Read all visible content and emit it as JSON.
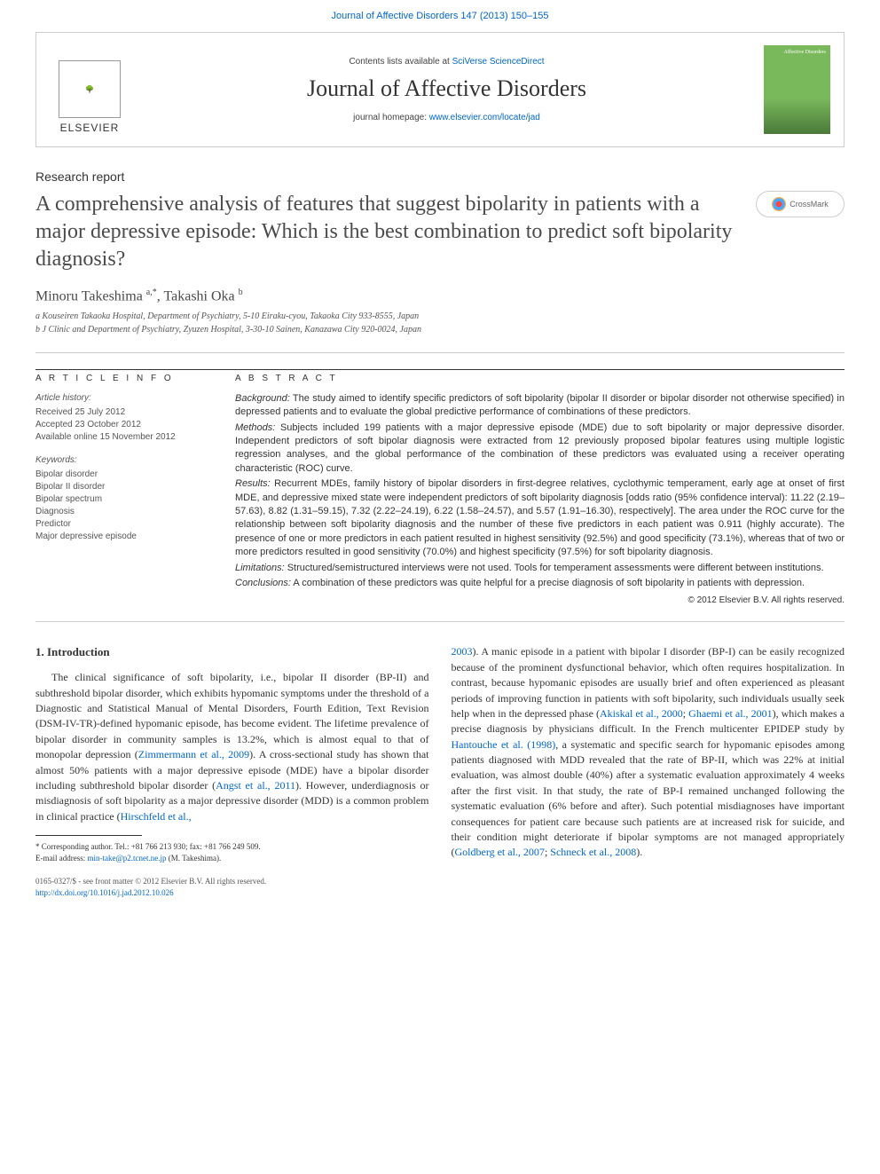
{
  "top_link": "Journal of Affective Disorders 147 (2013) 150–155",
  "header": {
    "contents_prefix": "Contents lists available at ",
    "contents_link": "SciVerse ScienceDirect",
    "journal_name": "Journal of Affective Disorders",
    "homepage_prefix": "journal homepage: ",
    "homepage_link": "www.elsevier.com/locate/jad",
    "publisher": "ELSEVIER",
    "cover_label": "Affective Disorders"
  },
  "article": {
    "type": "Research report",
    "title": "A comprehensive analysis of features that suggest bipolarity in patients with a major depressive episode: Which is the best combination to predict soft bipolarity diagnosis?",
    "crossmark": "CrossMark",
    "authors_html": "Minoru Takeshima <sup>a,*</sup>, Takashi Oka <sup>b</sup>",
    "affiliations": [
      "a Kouseiren Takaoka Hospital, Department of Psychiatry, 5-10 Eiraku-cyou, Takaoka City 933-8555, Japan",
      "b J Clinic and Department of Psychiatry, Zyuzen Hospital, 3-30-10 Sainen, Kanazawa City 920-0024, Japan"
    ]
  },
  "info": {
    "heading": "A R T I C L E   I N F O",
    "history_label": "Article history:",
    "history": [
      "Received 25 July 2012",
      "Accepted 23 October 2012",
      "Available online 15 November 2012"
    ],
    "keywords_label": "Keywords:",
    "keywords": [
      "Bipolar disorder",
      "Bipolar II disorder",
      "Bipolar spectrum",
      "Diagnosis",
      "Predictor",
      "Major depressive episode"
    ]
  },
  "abstract": {
    "heading": "A B S T R A C T",
    "background_label": "Background:",
    "background": " The study aimed to identify specific predictors of soft bipolarity (bipolar II disorder or bipolar disorder not otherwise specified) in depressed patients and to evaluate the global predictive performance of combinations of these predictors.",
    "methods_label": "Methods:",
    "methods": " Subjects included 199 patients with a major depressive episode (MDE) due to soft bipolarity or major depressive disorder. Independent predictors of soft bipolar diagnosis were extracted from 12 previously proposed bipolar features using multiple logistic regression analyses, and the global performance of the combination of these predictors was evaluated using a receiver operating characteristic (ROC) curve.",
    "results_label": "Results:",
    "results": " Recurrent MDEs, family history of bipolar disorders in first-degree relatives, cyclothymic temperament, early age at onset of first MDE, and depressive mixed state were independent predictors of soft bipolarity diagnosis [odds ratio (95% confidence interval): 11.22 (2.19–57.63), 8.82 (1.31–59.15), 7.32 (2.22–24.19), 6.22 (1.58–24.57), and 5.57 (1.91–16.30), respectively]. The area under the ROC curve for the relationship between soft bipolarity diagnosis and the number of these five predictors in each patient was 0.911 (highly accurate). The presence of one or more predictors in each patient resulted in highest sensitivity (92.5%) and good specificity (73.1%), whereas that of two or more predictors resulted in good sensitivity (70.0%) and highest specificity (97.5%) for soft bipolarity diagnosis.",
    "limitations_label": "Limitations:",
    "limitations": " Structured/semistructured interviews were not used. Tools for temperament assessments were different between institutions.",
    "conclusions_label": "Conclusions:",
    "conclusions": " A combination of these predictors was quite helpful for a precise diagnosis of soft bipolarity in patients with depression.",
    "copyright": "© 2012 Elsevier B.V. All rights reserved."
  },
  "body": {
    "section_heading": "1. Introduction",
    "col1_p1": "The clinical significance of soft bipolarity, i.e., bipolar II disorder (BP-II) and subthreshold bipolar disorder, which exhibits hypomanic symptoms under the threshold of a Diagnostic and Statistical Manual of Mental Disorders, Fourth Edition, Text Revision (DSM-IV-TR)-defined hypomanic episode, has become evident. The lifetime prevalence of bipolar disorder in community samples is 13.2%, which is almost equal to that of monopolar depression (",
    "col1_link1": "Zimmermann et al., 2009",
    "col1_p2": "). A cross-sectional study has shown that almost 50% patients with a major depressive episode (MDE) have a bipolar disorder including subthreshold bipolar disorder (",
    "col1_link2": "Angst et al., 2011",
    "col1_p3": "). However, underdiagnosis or misdiagnosis of soft bipolarity as a major depressive disorder (MDD) is a common problem in clinical practice (",
    "col1_link3": "Hirschfeld et al.,",
    "col2_link1": "2003",
    "col2_p1": "). A manic episode in a patient with bipolar I disorder (BP-I) can be easily recognized because of the prominent dysfunctional behavior, which often requires hospitalization. In contrast, because hypomanic episodes are usually brief and often experienced as pleasant periods of improving function in patients with soft bipolarity, such individuals usually seek help when in the depressed phase (",
    "col2_link2": "Akiskal et al., 2000",
    "col2_sep1": "; ",
    "col2_link3": "Ghaemi et al., 2001",
    "col2_p2": "), which makes a precise diagnosis by physicians difficult. In the French multicenter EPIDEP study by ",
    "col2_link4": "Hantouche et al. (1998)",
    "col2_p3": ", a systematic and specific search for hypomanic episodes among patients diagnosed with MDD revealed that the rate of BP-II, which was 22% at initial evaluation, was almost double (40%) after a systematic evaluation approximately 4 weeks after the first visit. In that study, the rate of BP-I remained unchanged following the systematic evaluation (6% before and after). Such potential misdiagnoses have important consequences for patient care because such patients are at increased risk for suicide, and their condition might deteriorate if bipolar symptoms are not managed appropriately (",
    "col2_link5": "Goldberg et al., 2007",
    "col2_sep2": "; ",
    "col2_link6": "Schneck et al., 2008",
    "col2_p4": ")."
  },
  "footnote": {
    "corr": "* Corresponding author. Tel.: +81 766 213 930; fax: +81 766 249 509.",
    "email_label": "E-mail address: ",
    "email": "min-take@p2.tcnet.ne.jp",
    "email_suffix": " (M. Takeshima)."
  },
  "bottom": {
    "issn": "0165-0327/$ - see front matter © 2012 Elsevier B.V. All rights reserved.",
    "doi": "http://dx.doi.org/10.1016/j.jad.2012.10.026"
  }
}
